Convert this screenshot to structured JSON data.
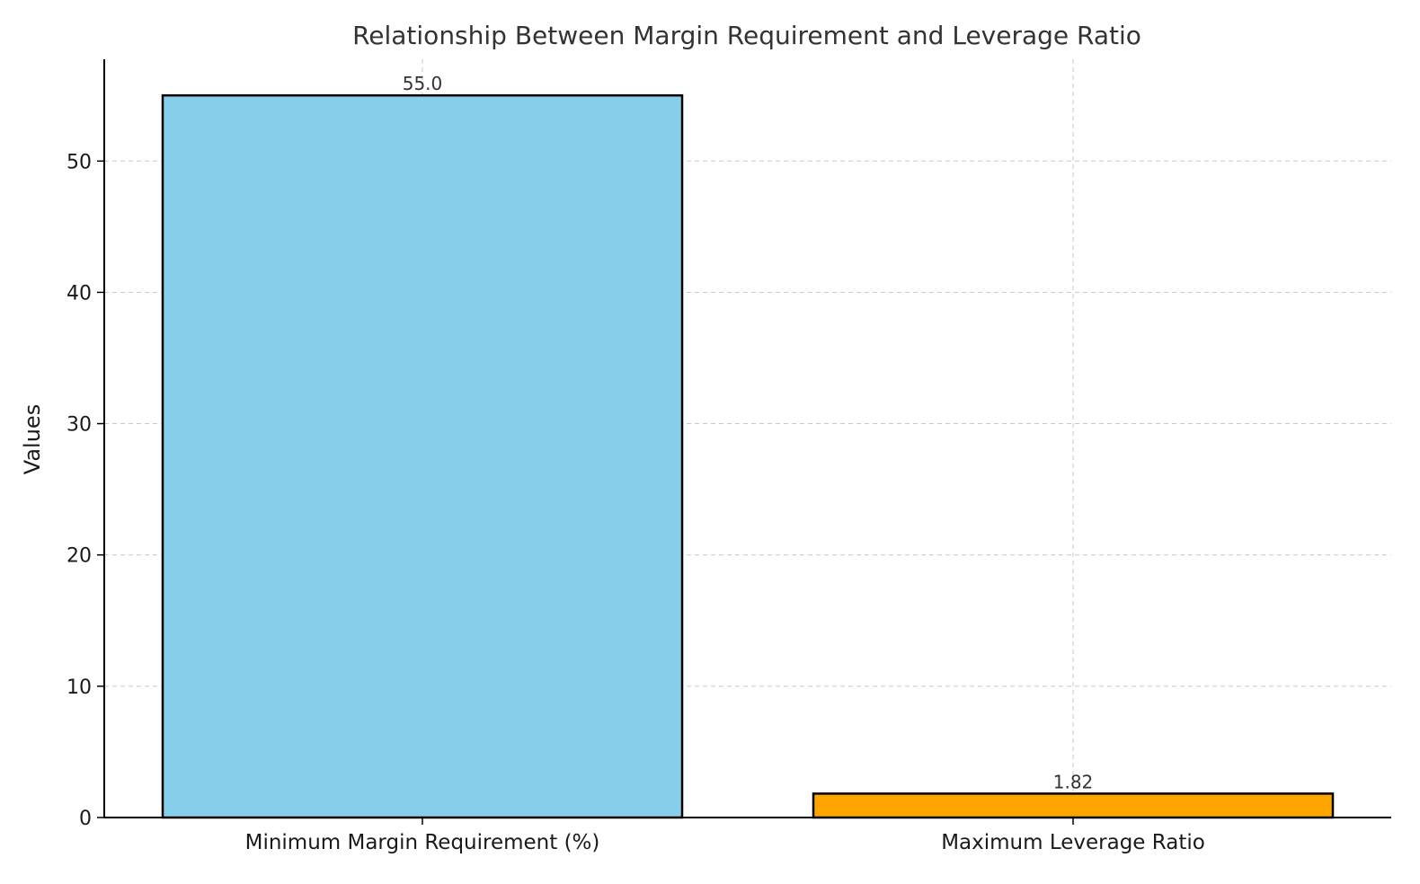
{
  "chart_data": {
    "type": "bar",
    "title": "Relationship Between Margin Requirement and Leverage Ratio",
    "xlabel": "",
    "ylabel": "Values",
    "categories": [
      "Minimum Margin Requirement (%)",
      "Maximum Leverage Ratio"
    ],
    "values": [
      55.0,
      1.82
    ],
    "value_labels": [
      "55.0",
      "1.82"
    ],
    "colors": [
      "#87CEEB",
      "#FFA500"
    ],
    "edge_color": "#000000",
    "ylim": [
      0,
      57.75
    ],
    "yticks": [
      0,
      10,
      20,
      30,
      40,
      50
    ],
    "ytick_labels": [
      "0",
      "10",
      "20",
      "30",
      "40",
      "50"
    ],
    "grid": true,
    "grid_style": "dashed"
  }
}
